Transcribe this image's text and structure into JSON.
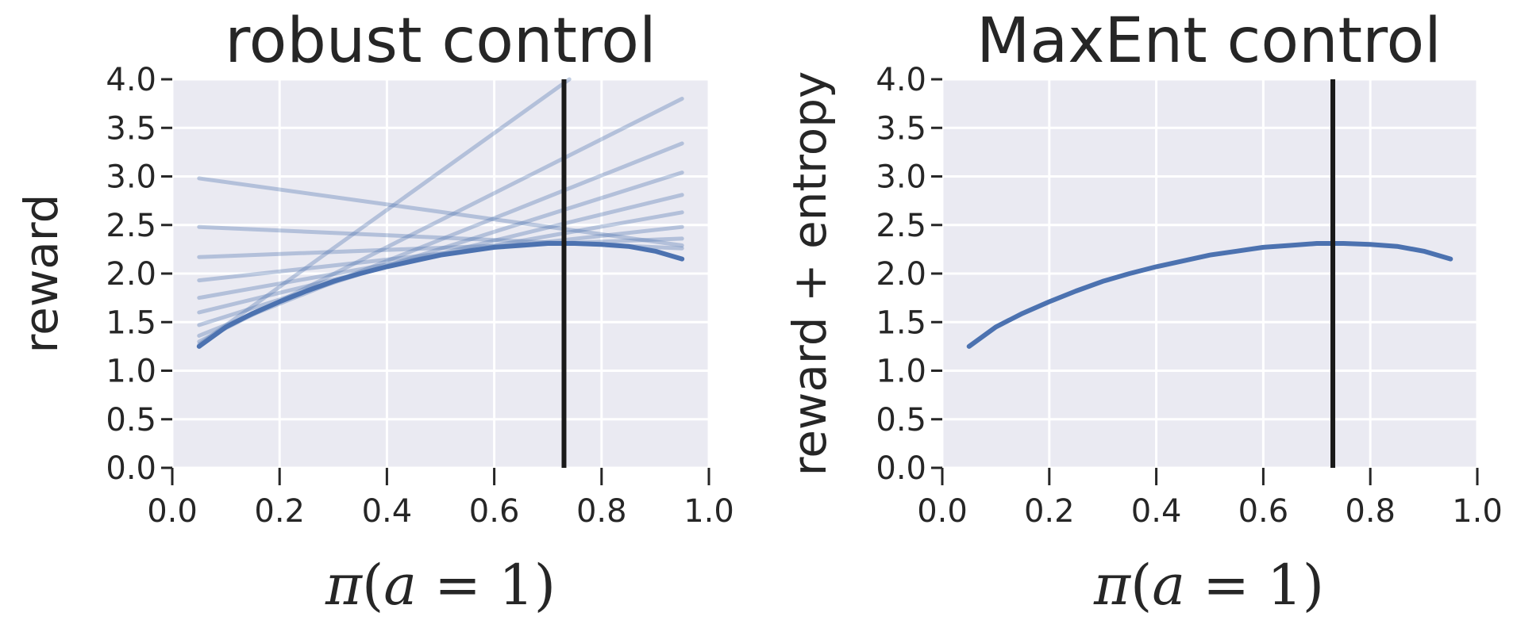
{
  "chart_data": [
    {
      "type": "line",
      "title": "robust control",
      "xlabel": "π(a = 1)",
      "ylabel": "reward",
      "xlim": [
        0.0,
        1.0
      ],
      "ylim": [
        0.0,
        4.0
      ],
      "xticks": [
        "0.0",
        "0.2",
        "0.4",
        "0.6",
        "0.8",
        "1.0"
      ],
      "yticks": [
        "0.0",
        "0.5",
        "1.0",
        "1.5",
        "2.0",
        "2.5",
        "3.0",
        "3.5",
        "4.0"
      ],
      "grid": true,
      "background_color": "#EAEAF2",
      "series": [
        {
          "role": "tangent",
          "x": [
            0.05,
            0.95
          ],
          "y": [
            2.98,
            2.29
          ]
        },
        {
          "role": "tangent",
          "x": [
            0.05,
            0.95
          ],
          "y": [
            2.48,
            2.26
          ]
        },
        {
          "role": "tangent",
          "x": [
            0.05,
            0.95
          ],
          "y": [
            2.17,
            2.36
          ]
        },
        {
          "role": "tangent",
          "x": [
            0.05,
            0.95
          ],
          "y": [
            1.93,
            2.48
          ]
        },
        {
          "role": "tangent",
          "x": [
            0.05,
            0.95
          ],
          "y": [
            1.75,
            2.63
          ]
        },
        {
          "role": "tangent",
          "x": [
            0.05,
            0.95
          ],
          "y": [
            1.6,
            2.81
          ]
        },
        {
          "role": "tangent",
          "x": [
            0.05,
            0.95
          ],
          "y": [
            1.47,
            3.04
          ]
        },
        {
          "role": "tangent",
          "x": [
            0.05,
            0.95
          ],
          "y": [
            1.36,
            3.34
          ]
        },
        {
          "role": "tangent",
          "x": [
            0.05,
            0.95
          ],
          "y": [
            1.3,
            3.8
          ]
        },
        {
          "role": "tangent",
          "x": [
            0.05,
            0.74
          ],
          "y": [
            1.27,
            4.0
          ]
        },
        {
          "role": "main",
          "x": [
            0.05,
            0.1,
            0.15,
            0.2,
            0.25,
            0.3,
            0.35,
            0.4,
            0.45,
            0.5,
            0.55,
            0.6,
            0.65,
            0.7,
            0.73,
            0.75,
            0.8,
            0.85,
            0.9,
            0.95
          ],
          "y": [
            1.25,
            1.45,
            1.59,
            1.71,
            1.82,
            1.92,
            2.0,
            2.07,
            2.13,
            2.19,
            2.23,
            2.27,
            2.29,
            2.31,
            2.31,
            2.31,
            2.3,
            2.28,
            2.23,
            2.15
          ]
        }
      ],
      "vline_x": 0.73,
      "colors": {
        "main": "#4C72B0",
        "tangent": "#4C72B0",
        "vline": "#1a1a1a"
      }
    },
    {
      "type": "line",
      "title": "MaxEnt control",
      "xlabel": "π(a = 1)",
      "ylabel": "reward + entropy",
      "xlim": [
        0.0,
        1.0
      ],
      "ylim": [
        0.0,
        4.0
      ],
      "xticks": [
        "0.0",
        "0.2",
        "0.4",
        "0.6",
        "0.8",
        "1.0"
      ],
      "yticks": [
        "0.0",
        "0.5",
        "1.0",
        "1.5",
        "2.0",
        "2.5",
        "3.0",
        "3.5",
        "4.0"
      ],
      "grid": true,
      "background_color": "#EAEAF2",
      "series": [
        {
          "role": "main",
          "x": [
            0.05,
            0.1,
            0.15,
            0.2,
            0.25,
            0.3,
            0.35,
            0.4,
            0.45,
            0.5,
            0.55,
            0.6,
            0.65,
            0.7,
            0.73,
            0.75,
            0.8,
            0.85,
            0.9,
            0.95
          ],
          "y": [
            1.25,
            1.45,
            1.59,
            1.71,
            1.82,
            1.92,
            2.0,
            2.07,
            2.13,
            2.19,
            2.23,
            2.27,
            2.29,
            2.31,
            2.31,
            2.31,
            2.3,
            2.28,
            2.23,
            2.15
          ]
        }
      ],
      "vline_x": 0.73,
      "colors": {
        "main": "#4C72B0",
        "vline": "#1a1a1a"
      }
    }
  ]
}
